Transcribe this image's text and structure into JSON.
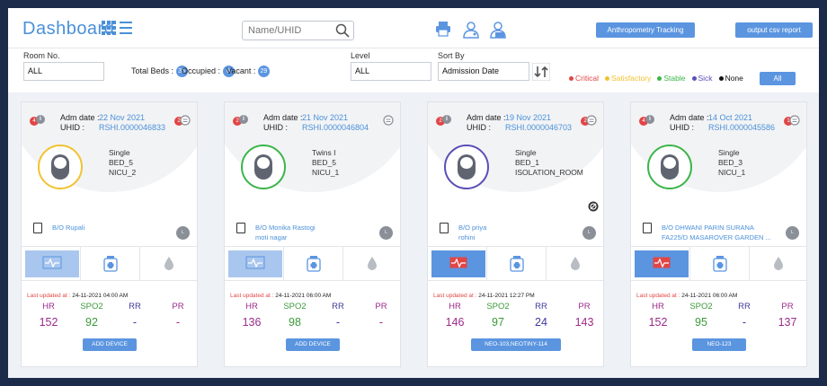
{
  "header": {
    "title": "Dashboard",
    "search_placeholder": "Name/UHID",
    "anthropometry_label": "Anthropometry Tracking",
    "output_csv_label": "output csv report"
  },
  "filters": {
    "room_label": "Room No.",
    "room_value": "ALL",
    "total_beds_label": "Total Beds :",
    "total_beds": "35",
    "occupied_label": "Occupied :",
    "occupied": "6",
    "vacant_label": "Vacant :",
    "vacant": "29",
    "level_label": "Level",
    "level_value": "ALL",
    "sort_label": "Sort By",
    "sort_value": "Admission Date",
    "all_button": "All"
  },
  "legend": [
    {
      "label": "Critical",
      "color": "#e14545"
    },
    {
      "label": "Satisfactory",
      "color": "#f2c230"
    },
    {
      "label": "Stable",
      "color": "#3bb54a"
    },
    {
      "label": "Sick",
      "color": "#5a4fb8"
    },
    {
      "label": "None",
      "color": "#111111"
    }
  ],
  "cards": [
    {
      "adm_label": "Adm date :",
      "adm_date": "22 Nov 2021",
      "uhid_label": "UHID :",
      "uhid": "RSHI.0000046833",
      "alerts": "4",
      "msgs": "2",
      "ring_color": "#f2c230",
      "bed_type": "Single",
      "bed": "BED_5",
      "room": "NICU_2",
      "name1": "B/O Rupali",
      "name2": "",
      "status_icon": "",
      "updated_label": "Last updated at :",
      "updated": "24-11-2021 04:00 AM",
      "monitor_alert": false,
      "hr_label": "HR",
      "spo2_label": "SPO2",
      "rr_label": "RR",
      "pr_label": "PR",
      "hr": "152",
      "spo2": "92",
      "rr": "-",
      "pr": "-",
      "device": "ADD DEVICE"
    },
    {
      "adm_label": "Adm date :",
      "adm_date": "21 Nov 2021",
      "uhid_label": "UHID :",
      "uhid": "RSHI.0000046804",
      "alerts": "2",
      "msgs": "",
      "ring_color": "#3bb54a",
      "bed_type": "Twins I",
      "bed": "BED_5",
      "room": "NICU_1",
      "name1": "B/O Monika Rastogi",
      "name2": "moti nagar",
      "status_icon": "",
      "updated_label": "Last updated at :",
      "updated": "24-11-2021 06:00 AM",
      "monitor_alert": false,
      "hr_label": "HR",
      "spo2_label": "SPO2",
      "rr_label": "RR",
      "pr_label": "PR",
      "hr": "136",
      "spo2": "98",
      "rr": "-",
      "pr": "-",
      "device": "ADD DEVICE"
    },
    {
      "adm_label": "Adm date :",
      "adm_date": "19 Nov 2021",
      "uhid_label": "UHID :",
      "uhid": "RSHI.0000046703",
      "alerts": "2",
      "msgs": "2",
      "ring_color": "#5a4fb8",
      "bed_type": "Single",
      "bed": "BED_1",
      "room": "ISOLATION_ROOM",
      "name1": "B/O priya",
      "name2": "rohini",
      "status_icon": "yes",
      "updated_label": "Last updated at :",
      "updated": "24-11-2021 12:27 PM",
      "monitor_alert": true,
      "hr_label": "HR",
      "spo2_label": "SPO2",
      "rr_label": "RR",
      "pr_label": "PR",
      "hr": "146",
      "spo2": "97",
      "rr": "24",
      "pr": "143",
      "device": "NEO-103,NEOTINY-114"
    },
    {
      "adm_label": "Adm date :",
      "adm_date": "14 Oct 2021",
      "uhid_label": "UHID :",
      "uhid": "RSHI.0000045586",
      "alerts": "4",
      "msgs": "1",
      "ring_color": "#3bb54a",
      "bed_type": "Single",
      "bed": "BED_3",
      "room": "NICU_1",
      "name1": "B/O DHWANI PARIN SURANA",
      "name2": "FA225/D MASAROVER GARDEN ...",
      "status_icon": "",
      "updated_label": "Last updated at :",
      "updated": "24-11-2021 06:00 AM",
      "monitor_alert": true,
      "hr_label": "HR",
      "spo2_label": "SPO2",
      "rr_label": "RR",
      "pr_label": "PR",
      "hr": "152",
      "spo2": "95",
      "rr": "-",
      "pr": "137",
      "device": "NEO-123"
    }
  ],
  "vital_colors": {
    "hr": "#9c2a8a",
    "spo2": "#3a9a3a",
    "rr": "#3e3a9c",
    "pr": "#9c2a8a"
  }
}
